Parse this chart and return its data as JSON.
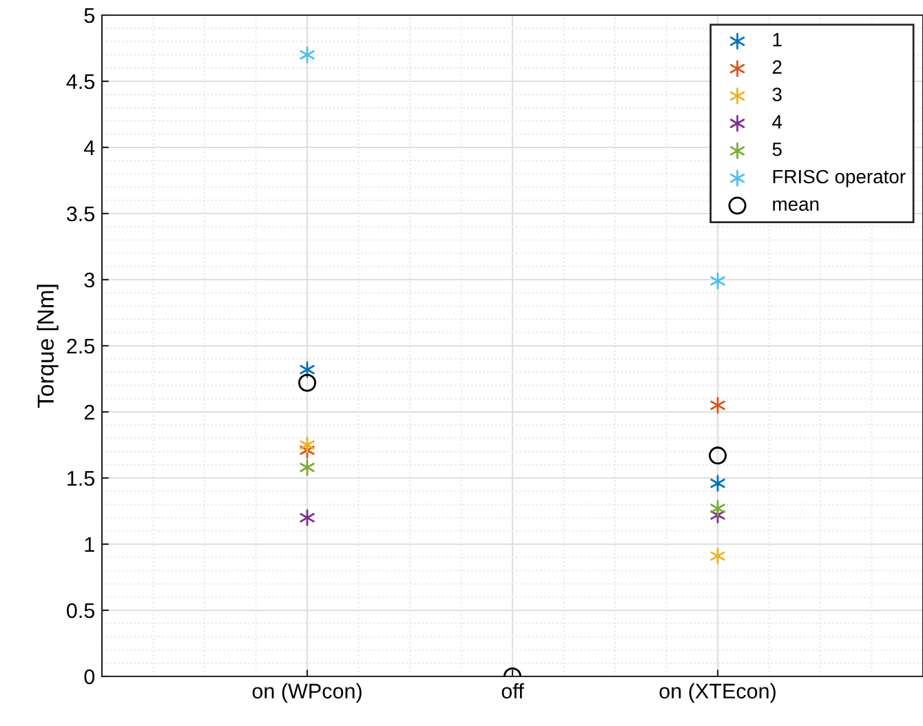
{
  "chart_data": {
    "type": "scatter",
    "ylabel": "Torque [Nm]",
    "categories": [
      "on (WPcon)",
      "off",
      "on (XTEcon)"
    ],
    "series": [
      {
        "name": "1",
        "color": "#0072bd",
        "values": [
          2.32,
          null,
          1.46
        ]
      },
      {
        "name": "2",
        "color": "#d95319",
        "values": [
          1.71,
          null,
          2.05
        ]
      },
      {
        "name": "3",
        "color": "#edb120",
        "values": [
          1.75,
          null,
          0.91
        ]
      },
      {
        "name": "4",
        "color": "#7e2f8e",
        "values": [
          1.2,
          null,
          1.22
        ]
      },
      {
        "name": "5",
        "color": "#77ac30",
        "values": [
          1.58,
          null,
          1.27
        ]
      },
      {
        "name": "FRISC operator",
        "color": "#4dbeee",
        "values": [
          4.7,
          null,
          2.99
        ]
      },
      {
        "name": "mean",
        "color": "#000000",
        "marker": "circle",
        "values": [
          2.22,
          0,
          1.67
        ]
      }
    ],
    "marker": "cross",
    "ylim": [
      0,
      5
    ],
    "yticks": [
      0,
      0.5,
      1,
      1.5,
      2,
      2.5,
      3,
      3.5,
      4,
      4.5,
      5
    ],
    "grid": true,
    "legend": "top right"
  }
}
